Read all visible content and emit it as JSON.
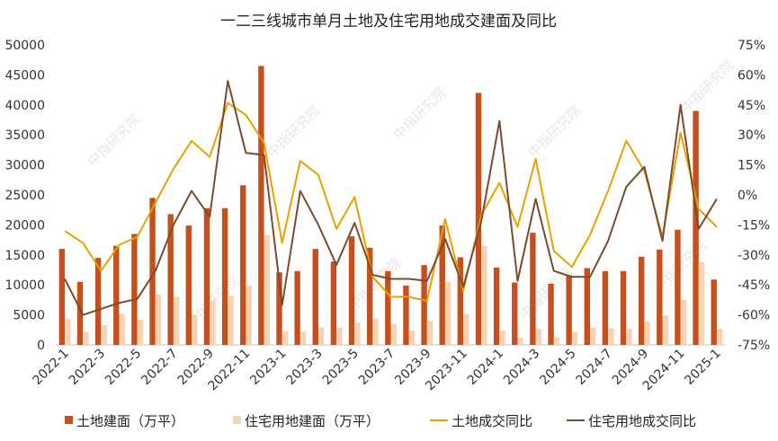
{
  "chart_data": {
    "type": "bar",
    "title": "一二三线城市单月土地及住宅用地成交建面及同比",
    "watermark": "中指研究院",
    "categories": [
      "2022-1",
      "2022-2",
      "2022-3",
      "2022-4",
      "2022-5",
      "2022-6",
      "2022-7",
      "2022-8",
      "2022-9",
      "2022-10",
      "2022-11",
      "2022-12",
      "2023-1",
      "2023-2",
      "2023-3",
      "2023-4",
      "2023-5",
      "2023-6",
      "2023-7",
      "2023-8",
      "2023-9",
      "2023-10",
      "2023-11",
      "2023-12",
      "2024-1",
      "2024-2",
      "2024-3",
      "2024-4",
      "2024-5",
      "2024-6",
      "2024-7",
      "2024-8",
      "2024-9",
      "2024-10",
      "2024-11",
      "2024-12",
      "2025-1"
    ],
    "x_tick_labels": [
      "2022-1",
      "2022-3",
      "2022-5",
      "2022-7",
      "2022-9",
      "2022-11",
      "2023-1",
      "2023-3",
      "2023-5",
      "2023-7",
      "2023-9",
      "2023-11",
      "2024-1",
      "2024-3",
      "2024-5",
      "2024-7",
      "2024-9",
      "2024-11",
      "2025-1"
    ],
    "y_left": {
      "ylim": [
        0,
        50000
      ],
      "ticks": [
        "0",
        "5000",
        "10000",
        "15000",
        "20000",
        "25000",
        "30000",
        "35000",
        "40000",
        "45000",
        "50000"
      ]
    },
    "y_right": {
      "ylim": [
        -75,
        75
      ],
      "ticks": [
        "-75%",
        "-60%",
        "-45%",
        "-30%",
        "-15%",
        "0%",
        "15%",
        "30%",
        "45%",
        "60%",
        "75%"
      ]
    },
    "grid": false,
    "legend_position": "bottom",
    "series": [
      {
        "name": "土地建面（万平）",
        "kind": "bar",
        "axis": "left",
        "color": "#C5501C",
        "values": [
          16000,
          10500,
          14500,
          16500,
          18500,
          24500,
          21800,
          19900,
          22800,
          22800,
          26600,
          46500,
          12100,
          12300,
          16000,
          13900,
          18100,
          16200,
          12300,
          9900,
          13300,
          19900,
          14600,
          42000,
          12900,
          10400,
          18700,
          10200,
          11600,
          12800,
          12300,
          12300,
          14700,
          15900,
          19200,
          39000,
          10900
        ]
      },
      {
        "name": "住宅用地建面（万平）",
        "kind": "bar",
        "axis": "left",
        "color": "#F6D3B3",
        "values": [
          4300,
          2100,
          3300,
          5200,
          4200,
          8400,
          8000,
          5100,
          7400,
          8200,
          9900,
          18300,
          2300,
          2200,
          2900,
          2900,
          3700,
          4400,
          3500,
          2400,
          4000,
          10500,
          5100,
          16500,
          2400,
          1200,
          2700,
          1300,
          2100,
          2900,
          2800,
          2700,
          4000,
          4900,
          7500,
          13800,
          2700
        ]
      },
      {
        "name": "土地成交同比",
        "kind": "line",
        "axis": "right",
        "color": "#E8A100",
        "values": [
          -18,
          -24,
          -38,
          -25,
          -21,
          -4,
          13,
          27,
          19,
          46,
          40,
          26,
          -24,
          17,
          10,
          -17,
          -1,
          -41,
          -51,
          -51,
          -53,
          -12,
          -48,
          -10,
          6,
          -16,
          18,
          -28,
          -36,
          -20,
          2,
          27,
          12,
          -21,
          31,
          -7,
          -16
        ]
      },
      {
        "name": "住宅用地成交同比",
        "kind": "line",
        "axis": "right",
        "color": "#7A4B2E",
        "values": [
          -42,
          -60,
          -57,
          -54,
          -52,
          -38,
          -15,
          2,
          -11,
          57,
          21,
          20,
          -55,
          2,
          -15,
          -35,
          -14,
          -40,
          -42,
          -42,
          -43,
          -22,
          -46,
          -13,
          37,
          -43,
          -2,
          -38,
          -41,
          -41,
          -23,
          4,
          14,
          -23,
          45,
          -17,
          -2
        ]
      }
    ]
  }
}
